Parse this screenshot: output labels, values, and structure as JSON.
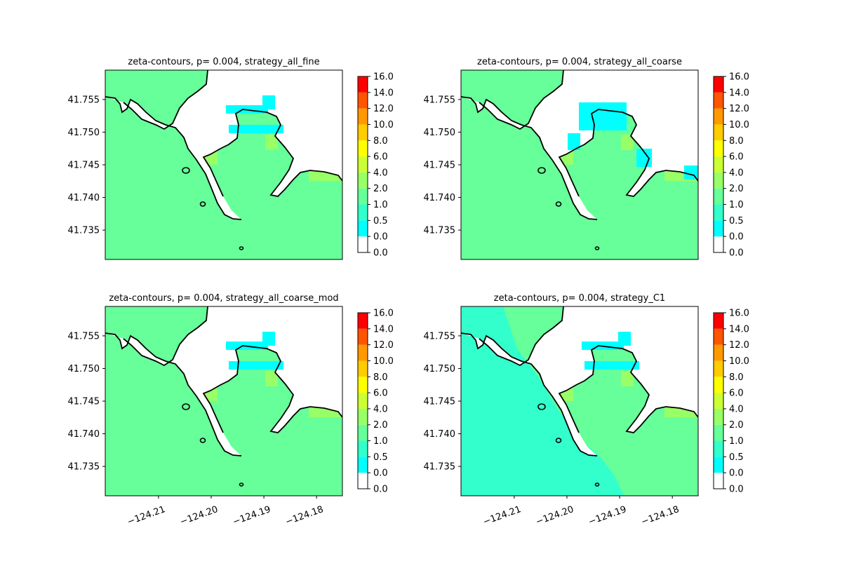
{
  "chart_data": [
    {
      "type": "heatmap",
      "title": "zeta-contours, p= 0.004, strategy_all_fine",
      "x_ticks": [
        "−124.21",
        "−124.20",
        "−124.19",
        "−124.18"
      ],
      "x_ticks_visible": false,
      "y_ticks": [
        "41.735",
        "41.740",
        "41.745",
        "41.750",
        "41.755"
      ],
      "xlim": [
        -124.2201,
        -124.1751
      ],
      "ylim": [
        41.7305,
        41.7595
      ],
      "levels": [
        0.0,
        0.5,
        1.0,
        2.0,
        4.0,
        6.0,
        8.0,
        10.0,
        12.0,
        14.0,
        16.0
      ],
      "colorbar_ticks": [
        "0.0",
        "0.0",
        "0.5",
        "1.0",
        "2.0",
        "4.0",
        "6.0",
        "8.0",
        "10.0",
        "12.0",
        "14.0",
        "16.0"
      ],
      "dominant_level": "2.0-4.0 over ocean and land-adjacent regions; 4.0-6.0 near shoreline patches"
    },
    {
      "type": "heatmap",
      "title": "zeta-contours, p= 0.004, strategy_all_coarse",
      "x_ticks": [
        "−124.21",
        "−124.20",
        "−124.19",
        "−124.18"
      ],
      "x_ticks_visible": false,
      "y_ticks": [
        "41.735",
        "41.740",
        "41.745",
        "41.750",
        "41.755"
      ],
      "xlim": [
        -124.2201,
        -124.1751
      ],
      "ylim": [
        41.7305,
        41.7595
      ],
      "levels": [
        0.0,
        0.5,
        1.0,
        2.0,
        4.0,
        6.0,
        8.0,
        10.0,
        12.0,
        14.0,
        16.0
      ],
      "colorbar_ticks": [
        "0.0",
        "0.0",
        "0.5",
        "1.0",
        "2.0",
        "4.0",
        "6.0",
        "8.0",
        "10.0",
        "12.0",
        "14.0",
        "16.0"
      ],
      "dominant_level": "2.0-4.0 with coarse blocky 0.5-1.0 cells along the inland edge"
    },
    {
      "type": "heatmap",
      "title": "zeta-contours, p= 0.004, strategy_all_coarse_mod",
      "x_ticks": [
        "−124.21",
        "−124.20",
        "−124.19",
        "−124.18"
      ],
      "x_ticks_visible": true,
      "y_ticks": [
        "41.735",
        "41.740",
        "41.745",
        "41.750",
        "41.755"
      ],
      "xlim": [
        -124.2201,
        -124.1751
      ],
      "ylim": [
        41.7305,
        41.7595
      ],
      "levels": [
        0.0,
        0.5,
        1.0,
        2.0,
        4.0,
        6.0,
        8.0,
        10.0,
        12.0,
        14.0,
        16.0
      ],
      "colorbar_ticks": [
        "0.0",
        "0.0",
        "0.5",
        "1.0",
        "2.0",
        "4.0",
        "6.0",
        "8.0",
        "10.0",
        "12.0",
        "14.0",
        "16.0"
      ],
      "dominant_level": "2.0-4.0 with scattered 0.5-1.0 strips inland"
    },
    {
      "type": "heatmap",
      "title": "zeta-contours, p= 0.004, strategy_C1",
      "x_ticks": [
        "−124.21",
        "−124.20",
        "−124.19",
        "−124.18"
      ],
      "x_ticks_visible": true,
      "y_ticks": [
        "41.735",
        "41.740",
        "41.745",
        "41.750",
        "41.755"
      ],
      "xlim": [
        -124.2201,
        -124.1751
      ],
      "ylim": [
        41.7305,
        41.7595
      ],
      "levels": [
        0.0,
        0.5,
        1.0,
        2.0,
        4.0,
        6.0,
        8.0,
        10.0,
        12.0,
        14.0,
        16.0
      ],
      "colorbar_ticks": [
        "0.0",
        "0.0",
        "0.5",
        "1.0",
        "2.0",
        "4.0",
        "6.0",
        "8.0",
        "10.0",
        "12.0",
        "14.0",
        "16.0"
      ],
      "dominant_level": "1.0-2.0 over the western ocean region; 2.0-4.0 near the harbor"
    }
  ],
  "colors": {
    "level_0": "#ffffff",
    "level_0_5": "#00ffff",
    "level_1": "#33ffcc",
    "level_2": "#66ff99",
    "level_4": "#99ff66",
    "level_6": "#ccff33",
    "level_8": "#ffff00",
    "level_10": "#ffcc00",
    "level_12": "#ff9900",
    "level_14": "#ff5500",
    "level_16": "#ff0000",
    "shoreline": "#000000"
  }
}
